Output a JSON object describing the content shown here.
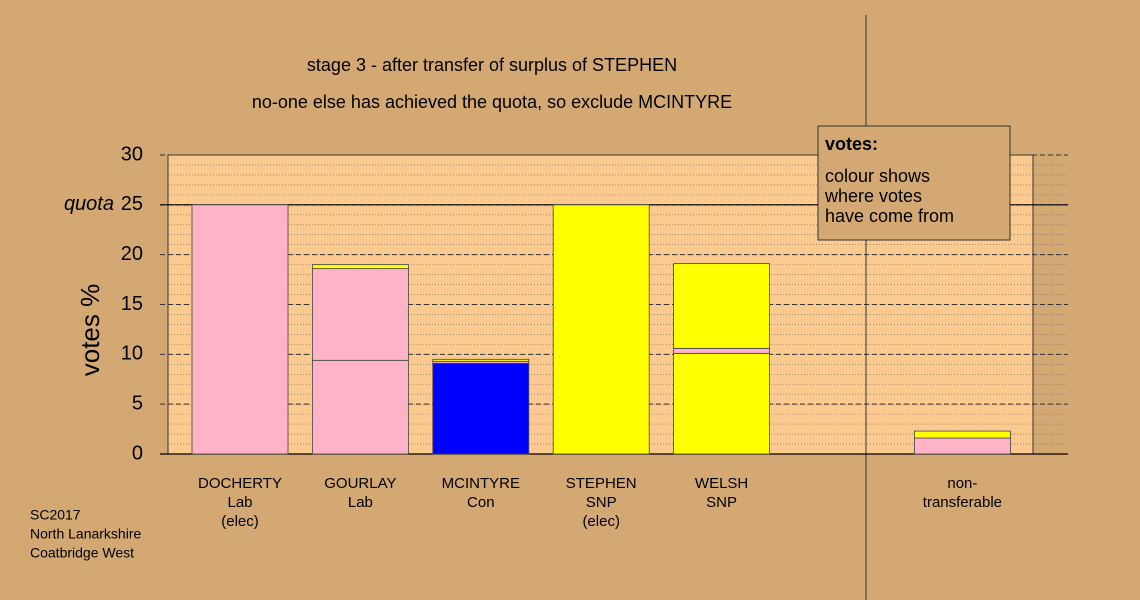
{
  "chart_data": {
    "type": "stacked-bar",
    "title": "stage 3 - after transfer of surplus of STEPHEN",
    "subtitle": "no-one else has achieved the quota, so exclude MCINTYRE",
    "y_label": "votes %",
    "categories": [
      [
        "DOCHERTY",
        "Lab",
        "(elec)"
      ],
      [
        "GOURLAY",
        "Lab"
      ],
      [
        "MCINTYRE",
        "Con"
      ],
      [
        "STEPHEN",
        "SNP",
        "(elec)"
      ],
      [
        "WELSH",
        "SNP"
      ],
      [
        "non-",
        "transferable"
      ]
    ],
    "stacks": [
      [
        {
          "color": "#ffb3c6",
          "value": 25
        }
      ],
      [
        {
          "color": "#ffb3c6",
          "value": 9.4
        },
        {
          "color": "#ffb3c6",
          "value": 9.2
        },
        {
          "color": "#ffff00",
          "value": 0.4
        }
      ],
      [
        {
          "color": "#0000ff",
          "value": 9.1
        },
        {
          "color": "#ffb3c6",
          "value": 0.2
        },
        {
          "color": "#ffff00",
          "value": 0.2
        }
      ],
      [
        {
          "color": "#ffff00",
          "value": 25
        }
      ],
      [
        {
          "color": "#ffff00",
          "value": 10.1
        },
        {
          "color": "#ffb3c6",
          "value": 0.5
        },
        {
          "color": "#ffff00",
          "value": 8.5
        }
      ],
      [
        {
          "color": "#ffb3c6",
          "value": 1.6
        },
        {
          "color": "#ffff00",
          "value": 0.7
        }
      ]
    ],
    "ylim": [
      0,
      30
    ],
    "yticks": [
      0,
      5,
      10,
      15,
      20,
      25,
      30
    ],
    "minor_grid_step": 1,
    "grid": true,
    "quota": 25,
    "quota_label": "quota",
    "note": {
      "title": "votes:",
      "lines": [
        "colour shows",
        "where votes",
        "have come from"
      ]
    },
    "footer": [
      "SC2017",
      "North Lanarkshire",
      "Coatbridge West"
    ]
  }
}
